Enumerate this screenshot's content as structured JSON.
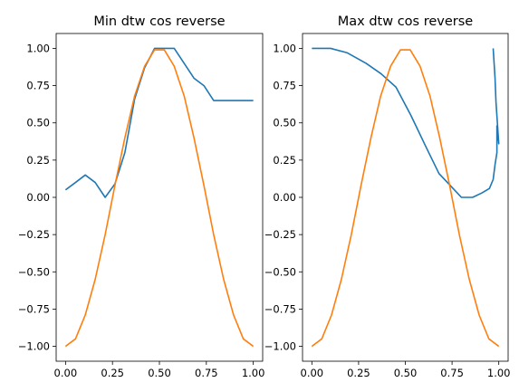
{
  "chart_data": [
    {
      "type": "line",
      "title": "Min dtw cos reverse",
      "xlabel": "",
      "ylabel": "",
      "xlim": [
        -0.05,
        1.05
      ],
      "ylim": [
        -1.1,
        1.1
      ],
      "xticks": [
        0.0,
        0.25,
        0.5,
        0.75,
        1.0
      ],
      "xtick_labels": [
        "0.00",
        "0.25",
        "0.50",
        "0.75",
        "1.00"
      ],
      "yticks": [
        1.0,
        0.75,
        0.5,
        0.25,
        0.0,
        -0.25,
        -0.5,
        -0.75,
        -1.0
      ],
      "ytick_labels": [
        "1.00",
        "0.75",
        "0.50",
        "0.25",
        "0.00",
        "−0.25",
        "−0.50",
        "−0.75",
        "−1.00"
      ],
      "grid": false,
      "series": [
        {
          "color": "#1f77b4",
          "x": [
            0.0,
            0.053,
            0.105,
            0.158,
            0.211,
            0.263,
            0.316,
            0.368,
            0.421,
            0.474,
            0.526,
            0.579,
            0.684,
            0.737,
            0.789,
            1.0
          ],
          "y": [
            0.05,
            0.1,
            0.15,
            0.1,
            0.0,
            0.09,
            0.3,
            0.66,
            0.87,
            1.0,
            1.0,
            1.0,
            0.8,
            0.75,
            0.65,
            0.65
          ]
        },
        {
          "color": "#ff7f0e",
          "x": [
            0.0,
            0.053,
            0.105,
            0.158,
            0.211,
            0.263,
            0.316,
            0.368,
            0.421,
            0.474,
            0.526,
            0.579,
            0.632,
            0.684,
            0.737,
            0.789,
            0.842,
            0.895,
            0.947,
            1.0
          ],
          "y": [
            -1.0,
            -0.95,
            -0.79,
            -0.55,
            -0.25,
            0.08,
            0.4,
            0.68,
            0.88,
            0.99,
            0.99,
            0.88,
            0.68,
            0.4,
            0.08,
            -0.25,
            -0.55,
            -0.79,
            -0.95,
            -1.0
          ]
        }
      ]
    },
    {
      "type": "line",
      "title": "Max dtw cos reverse",
      "xlabel": "",
      "ylabel": "",
      "xlim": [
        -0.05,
        1.05
      ],
      "ylim": [
        -1.1,
        1.1
      ],
      "xticks": [
        0.0,
        0.25,
        0.5,
        0.75,
        1.0
      ],
      "xtick_labels": [
        "0.00",
        "0.25",
        "0.50",
        "0.75",
        "1.00"
      ],
      "yticks": [
        1.0,
        0.75,
        0.5,
        0.25,
        0.0,
        -0.25,
        -0.5,
        -0.75,
        -1.0
      ],
      "ytick_labels": [
        "1.00",
        "0.75",
        "0.50",
        "0.25",
        "0.00",
        "−0.25",
        "−0.50",
        "−0.75",
        "−1.00"
      ],
      "grid": false,
      "series": [
        {
          "color": "#1f77b4",
          "x": [
            0.0,
            0.1,
            0.19,
            0.29,
            0.37,
            0.45,
            0.53,
            0.61,
            0.68,
            0.74,
            0.8,
            0.86,
            0.91,
            0.95,
            0.97,
            0.98,
            0.99,
            0.99,
            1.0,
            0.985,
            0.98,
            0.97
          ],
          "y": [
            1.0,
            1.0,
            0.97,
            0.9,
            0.83,
            0.74,
            0.55,
            0.34,
            0.16,
            0.08,
            0.0,
            0.0,
            0.03,
            0.06,
            0.12,
            0.22,
            0.3,
            0.48,
            0.36,
            0.64,
            0.8,
            1.0
          ]
        },
        {
          "color": "#ff7f0e",
          "x": [
            0.0,
            0.053,
            0.105,
            0.158,
            0.211,
            0.263,
            0.316,
            0.368,
            0.421,
            0.474,
            0.526,
            0.579,
            0.632,
            0.684,
            0.737,
            0.789,
            0.842,
            0.895,
            0.947,
            1.0
          ],
          "y": [
            -1.0,
            -0.95,
            -0.79,
            -0.55,
            -0.25,
            0.08,
            0.4,
            0.68,
            0.88,
            0.99,
            0.99,
            0.88,
            0.68,
            0.4,
            0.08,
            -0.25,
            -0.55,
            -0.79,
            -0.95,
            -1.0
          ]
        }
      ]
    }
  ]
}
